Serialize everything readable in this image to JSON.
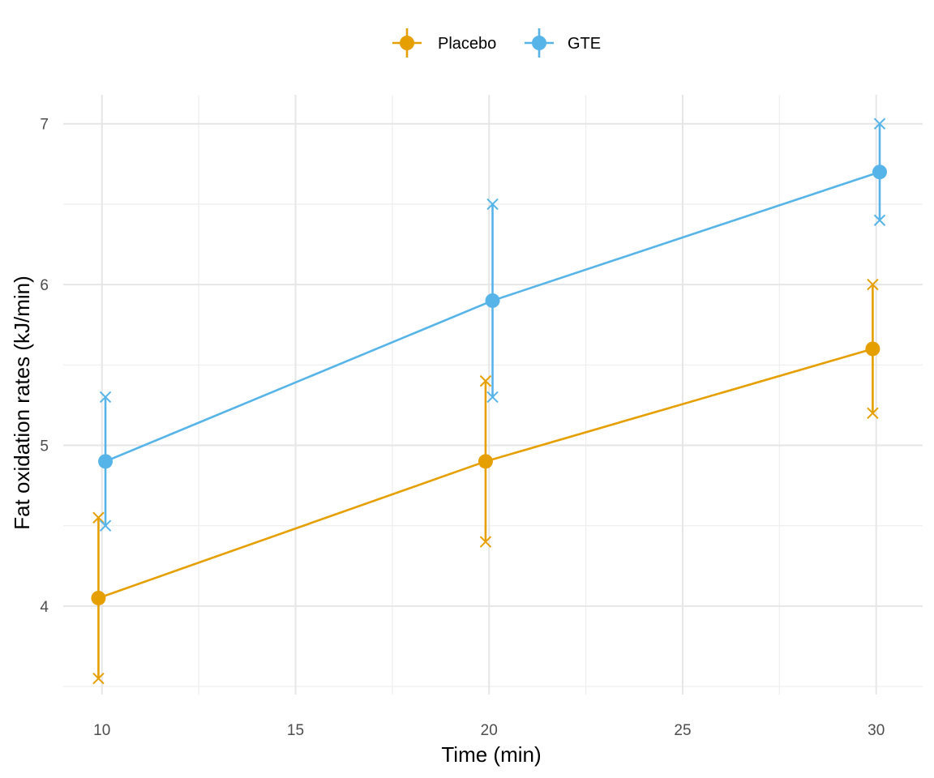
{
  "chart_data": {
    "type": "line",
    "xlabel": "Time (min)",
    "ylabel": "Fat oxidation rates (kJ/min)",
    "xlim": [
      9,
      31.2
    ],
    "ylim": [
      3.45,
      7.18
    ],
    "x_ticks": [
      10,
      15,
      20,
      25,
      30
    ],
    "y_ticks": [
      4,
      5,
      6,
      7
    ],
    "x_minor": [
      12.5,
      17.5,
      22.5,
      27.5
    ],
    "y_minor": [
      3.5,
      4.5,
      5.5,
      6.5
    ],
    "grid": true,
    "legend_position": "top",
    "series": [
      {
        "name": "Placebo",
        "color": "#E69F00",
        "x": [
          10,
          20,
          30
        ],
        "values": [
          4.05,
          4.9,
          5.6
        ],
        "lower": [
          3.55,
          4.4,
          5.2
        ],
        "upper": [
          4.55,
          5.4,
          6.0
        ]
      },
      {
        "name": "GTE",
        "color": "#56B4E9",
        "x": [
          10,
          20,
          30
        ],
        "values": [
          4.9,
          5.9,
          6.7
        ],
        "lower": [
          4.5,
          5.3,
          6.4
        ],
        "upper": [
          5.3,
          6.5,
          7.0
        ]
      }
    ]
  }
}
